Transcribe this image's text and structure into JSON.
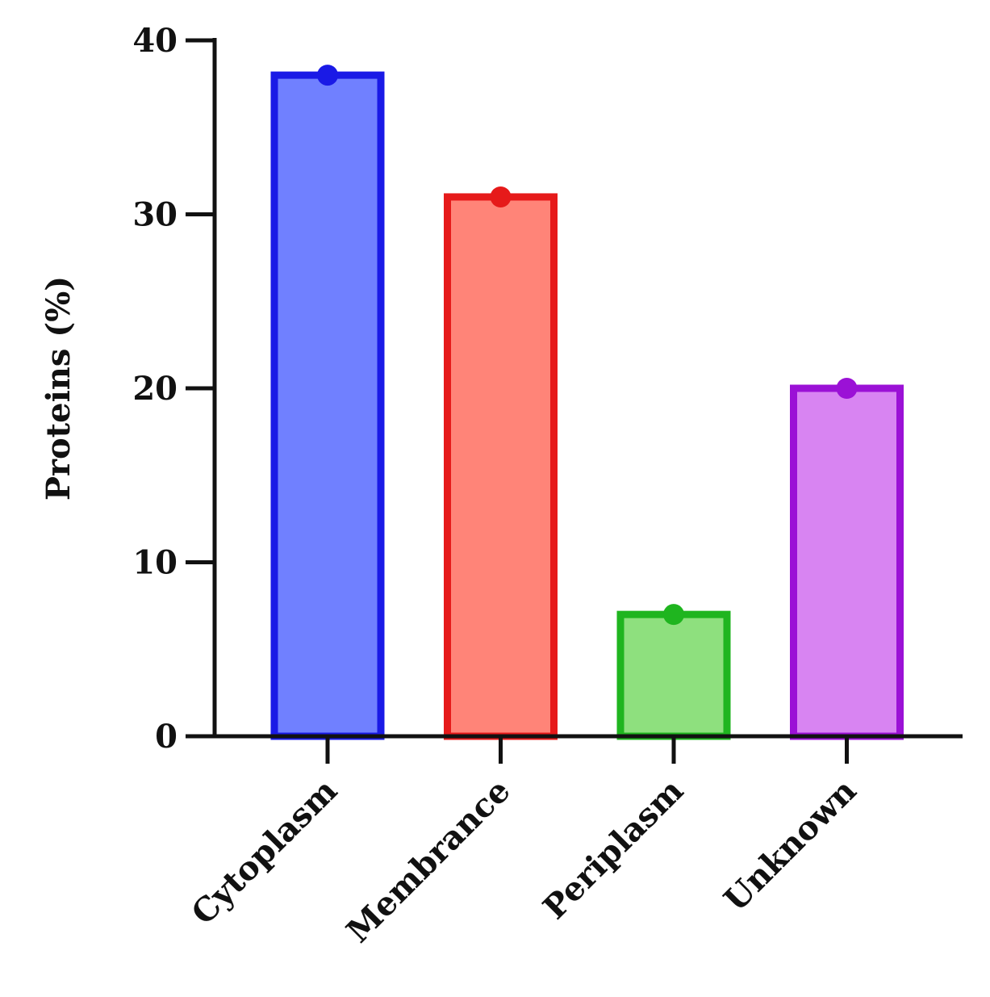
{
  "chart_data": {
    "type": "bar",
    "title": "",
    "xlabel": "",
    "ylabel": "Proteins (%)",
    "ylim": [
      0,
      40
    ],
    "yticks": [
      0,
      10,
      20,
      30,
      40
    ],
    "categories": [
      "Cytoplasm",
      "Membrance",
      "Periplasm",
      "Unknown"
    ],
    "values": [
      38,
      31,
      7,
      20
    ],
    "stroke_colors": [
      "#1a1ae6",
      "#e61a1a",
      "#1fb51f",
      "#9b11d6"
    ],
    "fill_colors": [
      "#7080ff",
      "#ff8478",
      "#8ee07e",
      "#d884f2"
    ],
    "grid": false,
    "legend": "none"
  }
}
